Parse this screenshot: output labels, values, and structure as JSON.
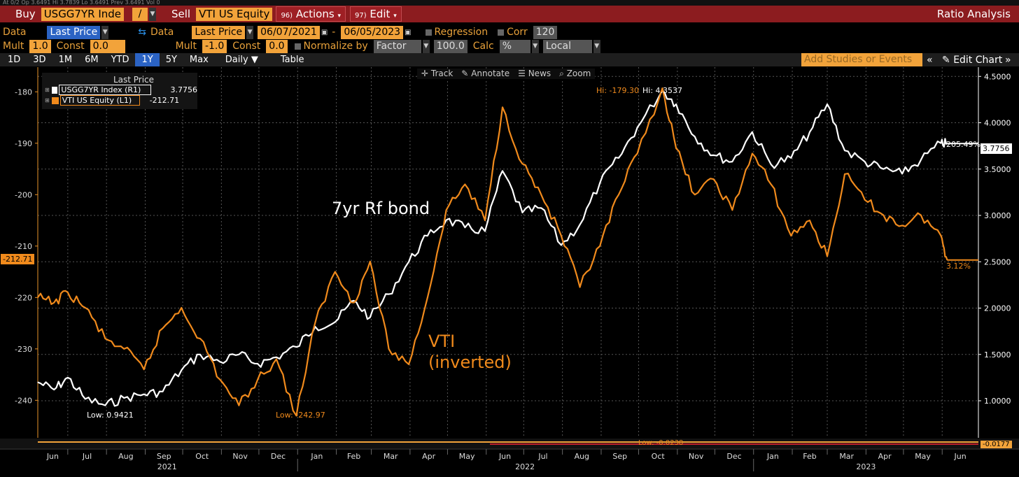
{
  "toolbar": {
    "top_strip": "At 0/2   Op 3.6491   Hi 3.7839   Lo 3.6491   Prev 3.6491   Vol 0",
    "buy_label": "Buy",
    "buy_ticker": "USGG7YR Inde",
    "ratio_op": "/",
    "sell_label": "Sell",
    "sell_ticker": "VTI US Equity",
    "actions_button": "Actions",
    "actions_code": "96)",
    "edit_button": "Edit",
    "edit_code": "97)",
    "title": "Ratio Analysis"
  },
  "settings": {
    "data_label": "Data",
    "data_value": "Last Price",
    "data2_label": "Data",
    "data2_value": "Last Price",
    "date_from": "06/07/2021",
    "date_sep": "-",
    "date_to": "06/05/2023",
    "regression_label": "Regression",
    "corr_label": "Corr",
    "corr_value": "120",
    "mult_label": "Mult",
    "mult_value": "1.0",
    "const_label": "Const",
    "const_value": "0.0",
    "mult2_label": "Mult",
    "mult2_value": "-1.0",
    "const2_label": "Const",
    "const2_value": "0.0",
    "normalize_label": "Normalize by",
    "normalize_value": "Factor",
    "factor_value": "100.0",
    "calc_label": "Calc",
    "calc_value": "%",
    "local_value": "Local"
  },
  "periods": {
    "items": [
      "1D",
      "3D",
      "1M",
      "6M",
      "YTD",
      "1Y",
      "5Y",
      "Max"
    ],
    "active": "1Y",
    "daily_label": "Daily ▼",
    "table_label": "Table",
    "studies_placeholder": "Add Studies or Events",
    "edit_chart": "Edit Chart"
  },
  "chart_tools": {
    "track": "Track",
    "annotate": "Annotate",
    "news": "News",
    "zoom": "Zoom"
  },
  "colors": {
    "bond": "#ffffff",
    "vti": "#f08a1c",
    "accent_bar": "#8c1c1f",
    "orange_field": "#f2a33a",
    "active_tab": "#2b63c4"
  },
  "chart_data": {
    "type": "line",
    "x_range": [
      "2021-06-07",
      "2023-06-30"
    ],
    "months": [
      "Jun",
      "Jul",
      "Aug",
      "Sep",
      "Oct",
      "Nov",
      "Dec",
      "Jan",
      "Feb",
      "Mar",
      "Apr",
      "May",
      "Jun",
      "Jul",
      "Aug",
      "Sep",
      "Oct",
      "Nov",
      "Dec",
      "Jan",
      "Feb",
      "Mar",
      "Apr",
      "May",
      "Jun"
    ],
    "years": [
      {
        "label": "2021",
        "after": "Jun 2021"
      },
      {
        "label": "2022",
        "after": "Jan 2022"
      },
      {
        "label": "2023",
        "after": "Jan 2023"
      }
    ],
    "y_right": {
      "ticks": [
        "4.5000",
        "4.0000",
        "3.5000",
        "3.0000",
        "2.5000",
        "2.0000",
        "1.5000",
        "1.0000"
      ],
      "range": [
        0.6,
        4.6
      ]
    },
    "y_left": {
      "ticks": [
        "-180",
        "-190",
        "-200",
        "-210",
        "-220",
        "-230",
        "-240"
      ],
      "range": [
        -247.3,
        -175.2
      ]
    },
    "legend_title": "Last Price",
    "series": [
      {
        "name": "USGG7YR Index  (R1)",
        "axis": "right",
        "last": "3.7756",
        "high_label": "Hi: 4.3537",
        "low_label": "Low: 0.9421",
        "change_label": "205.49%",
        "points": [
          [
            "2021-06-07",
            1.2
          ],
          [
            "2021-06-20",
            1.12
          ],
          [
            "2021-07-01",
            1.25
          ],
          [
            "2021-07-15",
            1.02
          ],
          [
            "2021-07-31",
            0.95
          ],
          [
            "2021-08-15",
            1.03
          ],
          [
            "2021-08-31",
            1.07
          ],
          [
            "2021-09-15",
            1.1
          ],
          [
            "2021-09-30",
            1.33
          ],
          [
            "2021-10-15",
            1.5
          ],
          [
            "2021-10-31",
            1.42
          ],
          [
            "2021-11-15",
            1.5
          ],
          [
            "2021-11-30",
            1.4
          ],
          [
            "2021-12-15",
            1.47
          ],
          [
            "2021-12-31",
            1.58
          ],
          [
            "2022-01-15",
            1.8
          ],
          [
            "2022-01-31",
            1.85
          ],
          [
            "2022-02-15",
            2.08
          ],
          [
            "2022-02-28",
            1.9
          ],
          [
            "2022-03-15",
            2.15
          ],
          [
            "2022-03-31",
            2.5
          ],
          [
            "2022-04-15",
            2.78
          ],
          [
            "2022-04-30",
            2.95
          ],
          [
            "2022-05-15",
            2.87
          ],
          [
            "2022-05-31",
            2.83
          ],
          [
            "2022-06-14",
            3.48
          ],
          [
            "2022-06-30",
            3.03
          ],
          [
            "2022-07-15",
            3.08
          ],
          [
            "2022-07-31",
            2.68
          ],
          [
            "2022-08-15",
            2.9
          ],
          [
            "2022-08-31",
            3.35
          ],
          [
            "2022-09-15",
            3.62
          ],
          [
            "2022-09-30",
            3.95
          ],
          [
            "2022-10-20",
            4.35
          ],
          [
            "2022-10-31",
            4.2
          ],
          [
            "2022-11-15",
            3.85
          ],
          [
            "2022-11-30",
            3.65
          ],
          [
            "2022-12-15",
            3.58
          ],
          [
            "2022-12-31",
            3.9
          ],
          [
            "2023-01-15",
            3.55
          ],
          [
            "2023-01-31",
            3.62
          ],
          [
            "2023-02-15",
            3.9
          ],
          [
            "2023-03-01",
            4.2
          ],
          [
            "2023-03-15",
            3.7
          ],
          [
            "2023-03-31",
            3.58
          ],
          [
            "2023-04-15",
            3.5
          ],
          [
            "2023-04-30",
            3.45
          ],
          [
            "2023-05-15",
            3.6
          ],
          [
            "2023-05-31",
            3.78
          ],
          [
            "2023-06-05",
            3.7756
          ]
        ]
      },
      {
        "name": "VTI US Equity  (L1)",
        "axis": "left",
        "last": "-212.71",
        "high_label": "Hi: -179.30",
        "low_label": "Low: -242.97",
        "change_label": "3.12%",
        "points": [
          [
            "2021-06-07",
            -220
          ],
          [
            "2021-06-20",
            -221
          ],
          [
            "2021-07-01",
            -219
          ],
          [
            "2021-07-15",
            -222
          ],
          [
            "2021-07-31",
            -228
          ],
          [
            "2021-08-15",
            -230
          ],
          [
            "2021-08-31",
            -234
          ],
          [
            "2021-09-15",
            -226
          ],
          [
            "2021-09-30",
            -222
          ],
          [
            "2021-10-15",
            -228
          ],
          [
            "2021-10-31",
            -236
          ],
          [
            "2021-11-15",
            -241
          ],
          [
            "2021-11-30",
            -236
          ],
          [
            "2021-12-15",
            -232
          ],
          [
            "2021-12-31",
            -243
          ],
          [
            "2022-01-15",
            -225
          ],
          [
            "2022-01-31",
            -215
          ],
          [
            "2022-02-15",
            -221
          ],
          [
            "2022-02-28",
            -213
          ],
          [
            "2022-03-15",
            -230
          ],
          [
            "2022-03-31",
            -233
          ],
          [
            "2022-04-15",
            -220
          ],
          [
            "2022-04-30",
            -203
          ],
          [
            "2022-05-15",
            -198
          ],
          [
            "2022-05-31",
            -205
          ],
          [
            "2022-06-14",
            -183
          ],
          [
            "2022-06-30",
            -194
          ],
          [
            "2022-07-15",
            -200
          ],
          [
            "2022-07-31",
            -208
          ],
          [
            "2022-08-15",
            -218
          ],
          [
            "2022-08-31",
            -210
          ],
          [
            "2022-09-15",
            -200
          ],
          [
            "2022-09-30",
            -192
          ],
          [
            "2022-10-20",
            -179.3
          ],
          [
            "2022-10-31",
            -191
          ],
          [
            "2022-11-15",
            -200
          ],
          [
            "2022-11-30",
            -197
          ],
          [
            "2022-12-15",
            -203
          ],
          [
            "2022-12-31",
            -192
          ],
          [
            "2023-01-15",
            -198
          ],
          [
            "2023-01-31",
            -208
          ],
          [
            "2023-02-15",
            -205
          ],
          [
            "2023-03-01",
            -212
          ],
          [
            "2023-03-15",
            -196
          ],
          [
            "2023-03-31",
            -201
          ],
          [
            "2023-04-15",
            -204
          ],
          [
            "2023-04-30",
            -206
          ],
          [
            "2023-05-15",
            -204
          ],
          [
            "2023-05-31",
            -208
          ],
          [
            "2023-06-05",
            -212.71
          ]
        ]
      }
    ],
    "annotations": [
      {
        "text": "7yr Rf bond",
        "color": "#ffffff"
      },
      {
        "text": "VTI",
        "color": "#f08a1c"
      },
      {
        "text": "(inverted)",
        "color": "#f08a1c"
      }
    ],
    "bottom_panel": {
      "low_label": "Low: -0.0238",
      "value_label": "-0.0177"
    },
    "grid": true,
    "legend_position": "top-left"
  }
}
